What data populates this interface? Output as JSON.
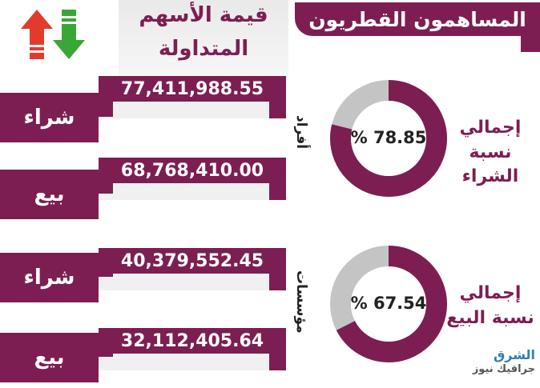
{
  "title": "المساهمون القطريون",
  "value_header": {
    "line1": "قيمة الأسهم",
    "line2": "المتداولة"
  },
  "rows": [
    {
      "type": "شراء",
      "value": "77,411,988.55"
    },
    {
      "type": "بيع",
      "value": "68,768,410.00"
    },
    {
      "type": "شراء",
      "value": "40,379,552.45"
    },
    {
      "type": "بيع",
      "value": "32,112,405.64"
    }
  ],
  "groups": {
    "individuals": "أفراد",
    "institutions": "مؤسسات"
  },
  "donuts": [
    {
      "percent_text": "% 78.85",
      "fraction": 0.7885,
      "label_line1": "إجمالي",
      "label_line2": "نسبة الشراء"
    },
    {
      "percent_text": "% 67.54",
      "fraction": 0.6754,
      "label_line1": "إجمالي",
      "label_line2": "نسبة البيع"
    }
  ],
  "colors": {
    "accent": "#7d1e52",
    "donut_rest": "#c4c4c4",
    "up_arrow": "#e23b2e",
    "down_arrow": "#3aa635"
  },
  "icons": {
    "up": "up-arrow-icon",
    "down": "down-arrow-icon"
  },
  "logo": {
    "line1": "الشرق",
    "line2": "جرافيك نيوز"
  }
}
